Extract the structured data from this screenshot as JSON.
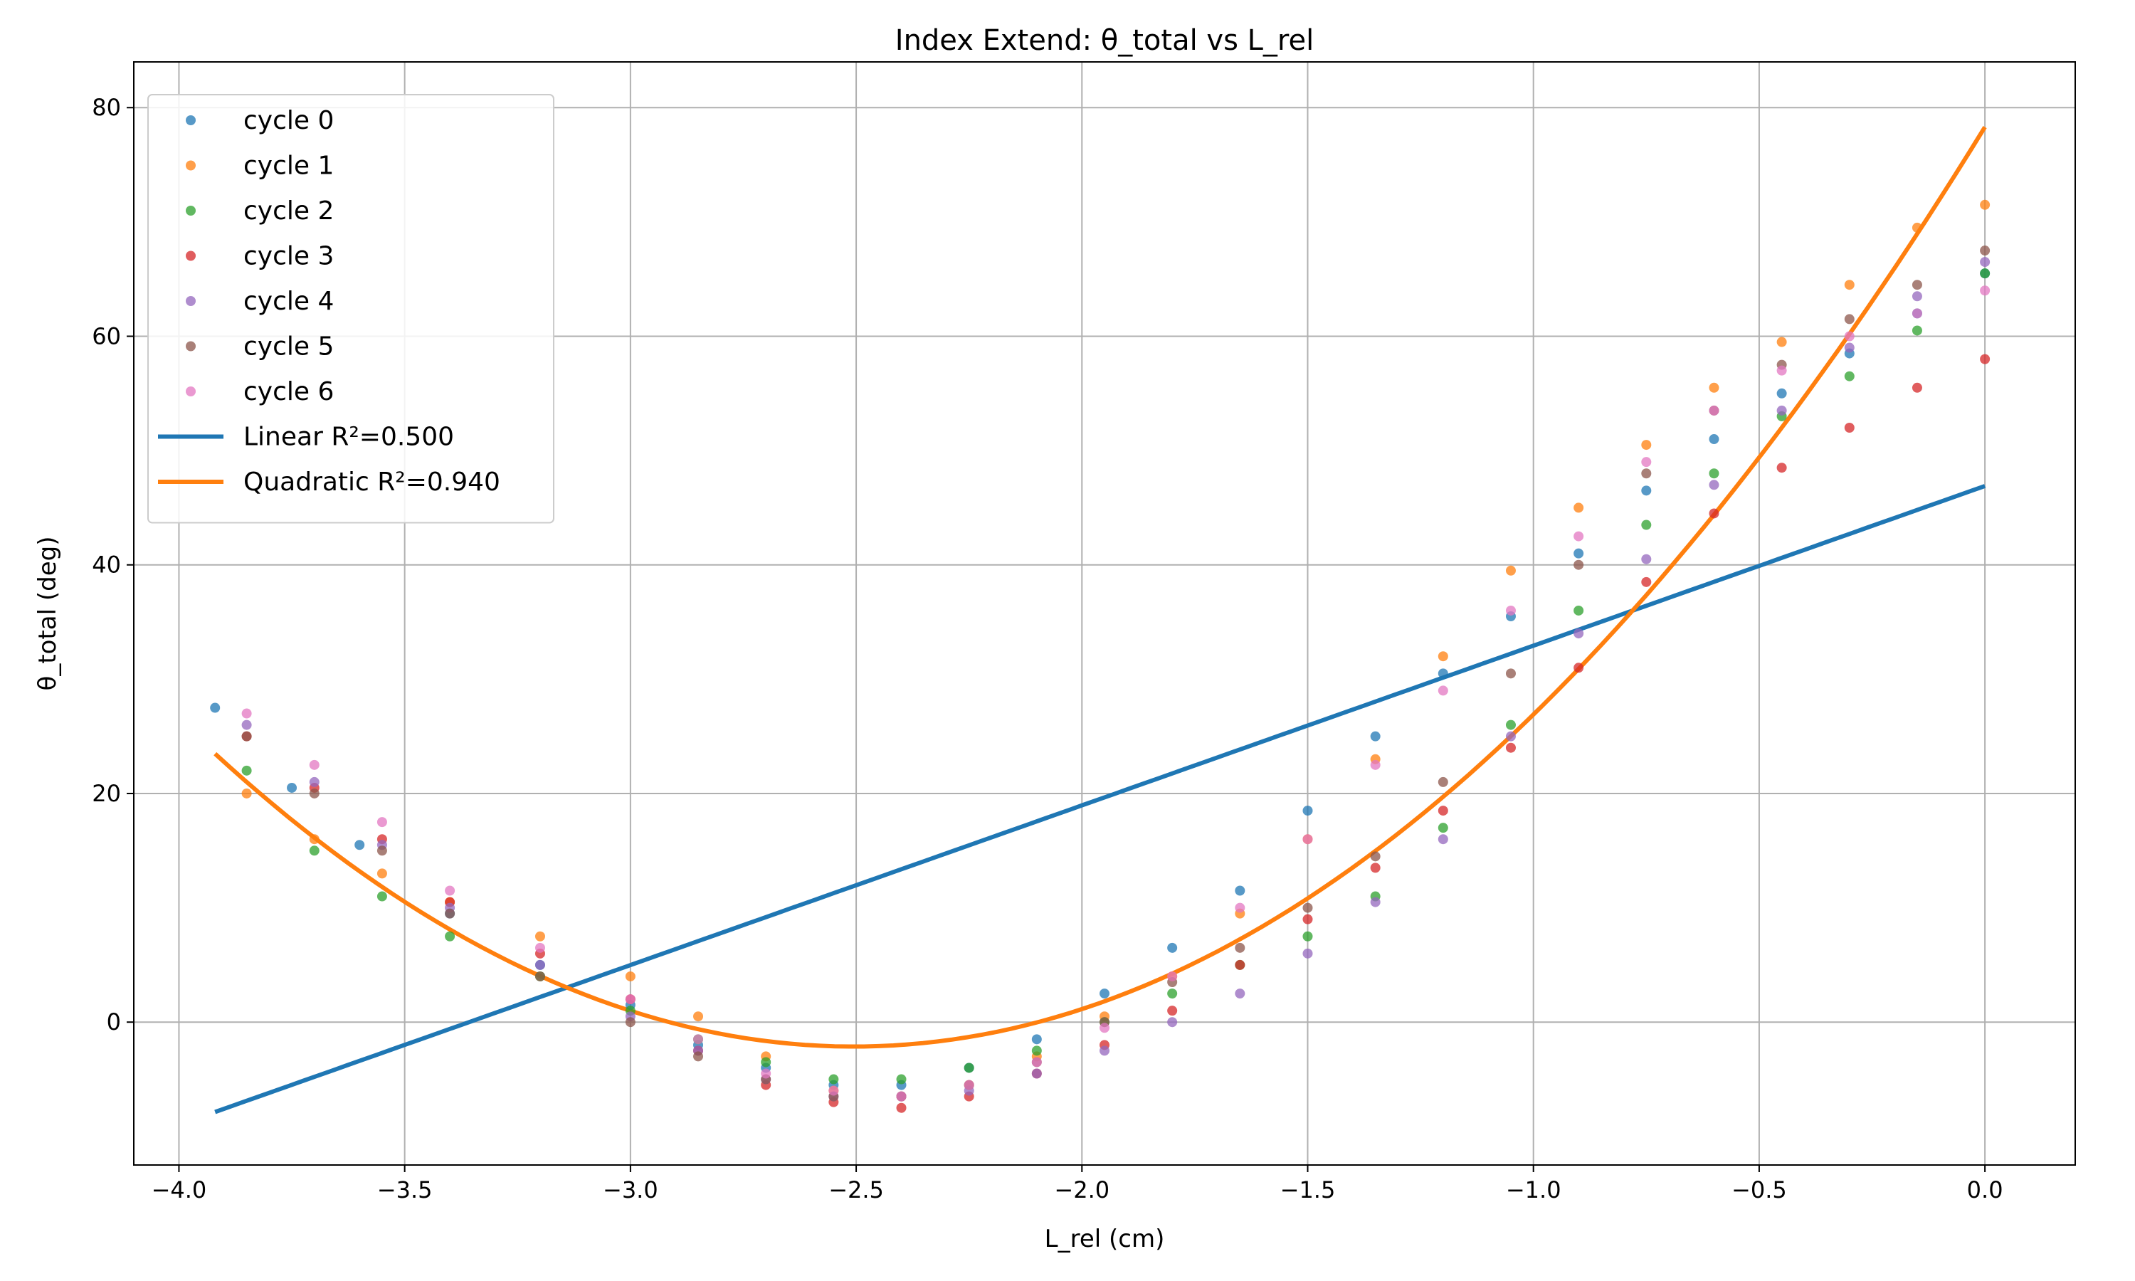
{
  "chart_data": {
    "type": "scatter",
    "title": "Index Extend: θ_total vs L_rel",
    "xlabel": "L_rel (cm)",
    "ylabel": "θ_total (deg)",
    "xlim": [
      -4.1,
      0.2
    ],
    "ylim": [
      -12.5,
      84
    ],
    "xticks": [
      -4.0,
      -3.5,
      -3.0,
      -2.5,
      -2.0,
      -1.5,
      -1.0,
      -0.5,
      0.0
    ],
    "xtick_labels": [
      "−4.0",
      "−3.5",
      "−3.0",
      "−2.5",
      "−2.0",
      "−1.5",
      "−1.0",
      "−0.5",
      "0.0"
    ],
    "yticks": [
      0,
      20,
      40,
      60,
      80
    ],
    "ytick_labels": [
      "0",
      "20",
      "40",
      "60",
      "80"
    ],
    "grid": true,
    "legend_position": "top-left",
    "series": [
      {
        "name": "cycle 0",
        "color": "#1f77b4",
        "x": [
          -3.92,
          -3.75,
          -3.6,
          -3.4,
          -3.2,
          -3.0,
          -2.85,
          -2.7,
          -2.55,
          -2.4,
          -2.25,
          -2.1,
          -1.95,
          -1.8,
          -1.65,
          -1.5,
          -1.35,
          -1.2,
          -1.05,
          -0.9,
          -0.75,
          -0.6,
          -0.45,
          -0.3,
          -0.15,
          0.0
        ],
        "y": [
          27.5,
          20.5,
          15.5,
          9.5,
          5.0,
          1.5,
          -2.0,
          -4.0,
          -5.5,
          -5.5,
          -4.0,
          -1.5,
          2.5,
          6.5,
          11.5,
          18.5,
          25.0,
          30.5,
          35.5,
          41.0,
          46.5,
          51.0,
          55.0,
          58.5,
          62.0,
          65.5
        ]
      },
      {
        "name": "cycle 1",
        "color": "#ff7f0e",
        "x": [
          -3.85,
          -3.7,
          -3.55,
          -3.4,
          -3.2,
          -3.0,
          -2.85,
          -2.7,
          -2.55,
          -2.4,
          -2.25,
          -2.1,
          -1.95,
          -1.8,
          -1.65,
          -1.5,
          -1.35,
          -1.2,
          -1.05,
          -0.9,
          -0.75,
          -0.6,
          -0.45,
          -0.3,
          -0.15,
          0.0
        ],
        "y": [
          20.0,
          16.0,
          13.0,
          10.5,
          7.5,
          4.0,
          0.5,
          -3.0,
          -6.0,
          -6.5,
          -5.5,
          -3.0,
          0.5,
          4.0,
          9.5,
          16.0,
          23.0,
          32.0,
          39.5,
          45.0,
          50.5,
          55.5,
          59.5,
          64.5,
          69.5,
          71.5
        ]
      },
      {
        "name": "cycle 2",
        "color": "#2ca02c",
        "x": [
          -3.85,
          -3.7,
          -3.55,
          -3.4,
          -3.2,
          -3.0,
          -2.85,
          -2.7,
          -2.55,
          -2.4,
          -2.25,
          -2.1,
          -1.95,
          -1.8,
          -1.65,
          -1.5,
          -1.35,
          -1.2,
          -1.05,
          -0.9,
          -0.75,
          -0.6,
          -0.45,
          -0.3,
          -0.15,
          0.0
        ],
        "y": [
          22.0,
          15.0,
          11.0,
          7.5,
          4.0,
          1.0,
          -1.5,
          -3.5,
          -5.0,
          -5.0,
          -4.0,
          -2.5,
          0.0,
          2.5,
          5.0,
          7.5,
          11.0,
          17.0,
          26.0,
          36.0,
          43.5,
          48.0,
          53.0,
          56.5,
          60.5,
          65.5
        ]
      },
      {
        "name": "cycle 3",
        "color": "#d62728",
        "x": [
          -3.85,
          -3.7,
          -3.55,
          -3.4,
          -3.2,
          -3.0,
          -2.85,
          -2.7,
          -2.55,
          -2.4,
          -2.25,
          -2.1,
          -1.95,
          -1.8,
          -1.65,
          -1.5,
          -1.35,
          -1.2,
          -1.05,
          -0.9,
          -0.75,
          -0.6,
          -0.45,
          -0.3,
          -0.15,
          0.0
        ],
        "y": [
          25.0,
          20.5,
          16.0,
          10.5,
          6.0,
          2.0,
          -2.5,
          -5.5,
          -7.0,
          -7.5,
          -6.5,
          -4.5,
          -2.0,
          1.0,
          5.0,
          9.0,
          13.5,
          18.5,
          24.0,
          31.0,
          38.5,
          44.5,
          48.5,
          52.0,
          55.5,
          58.0
        ]
      },
      {
        "name": "cycle 4",
        "color": "#9467bd",
        "x": [
          -3.85,
          -3.7,
          -3.55,
          -3.4,
          -3.2,
          -3.0,
          -2.85,
          -2.7,
          -2.55,
          -2.4,
          -2.25,
          -2.1,
          -1.95,
          -1.8,
          -1.65,
          -1.5,
          -1.35,
          -1.2,
          -1.05,
          -0.9,
          -0.75,
          -0.6,
          -0.45,
          -0.3,
          -0.15,
          0.0
        ],
        "y": [
          26.0,
          21.0,
          15.5,
          10.0,
          5.0,
          0.5,
          -2.5,
          -5.0,
          -6.5,
          -6.5,
          -6.0,
          -4.5,
          -2.5,
          0.0,
          2.5,
          6.0,
          10.5,
          16.0,
          25.0,
          34.0,
          40.5,
          47.0,
          53.5,
          59.0,
          63.5,
          66.5
        ]
      },
      {
        "name": "cycle 5",
        "color": "#8c564b",
        "x": [
          -3.85,
          -3.7,
          -3.55,
          -3.4,
          -3.2,
          -3.0,
          -2.85,
          -2.7,
          -2.55,
          -2.4,
          -2.25,
          -2.1,
          -1.95,
          -1.8,
          -1.65,
          -1.5,
          -1.35,
          -1.2,
          -1.05,
          -0.9,
          -0.75,
          -0.6,
          -0.45,
          -0.3,
          -0.15,
          0.0
        ],
        "y": [
          25.0,
          20.0,
          15.0,
          9.5,
          4.0,
          0.0,
          -3.0,
          -5.0,
          -6.5,
          -6.5,
          -5.5,
          -3.5,
          0.0,
          3.5,
          6.5,
          10.0,
          14.5,
          21.0,
          30.5,
          40.0,
          48.0,
          53.5,
          57.5,
          61.5,
          64.5,
          67.5
        ]
      },
      {
        "name": "cycle 6",
        "color": "#e377c2",
        "x": [
          -3.85,
          -3.7,
          -3.55,
          -3.4,
          -3.2,
          -3.0,
          -2.85,
          -2.7,
          -2.55,
          -2.4,
          -2.25,
          -2.1,
          -1.95,
          -1.8,
          -1.65,
          -1.5,
          -1.35,
          -1.2,
          -1.05,
          -0.9,
          -0.75,
          -0.6,
          -0.45,
          -0.3,
          -0.15,
          0.0
        ],
        "y": [
          27.0,
          22.5,
          17.5,
          11.5,
          6.5,
          2.0,
          -1.5,
          -4.5,
          -6.0,
          -6.5,
          -5.5,
          -3.5,
          -0.5,
          4.0,
          10.0,
          16.0,
          22.5,
          29.0,
          36.0,
          42.5,
          49.0,
          53.5,
          57.0,
          60.0,
          62.0,
          64.0
        ]
      }
    ],
    "fits": [
      {
        "name": "Linear R²=0.500",
        "color": "#1f77b4",
        "x_range": [
          -3.92,
          0.0
        ],
        "coefficients": [
          46.9,
          13.97
        ]
      },
      {
        "name": "Quadratic R²=0.940",
        "color": "#ff7f0e",
        "x_range": [
          -3.92,
          0.0
        ],
        "coefficients": [
          78.3,
          64.2,
          12.81
        ]
      }
    ]
  }
}
